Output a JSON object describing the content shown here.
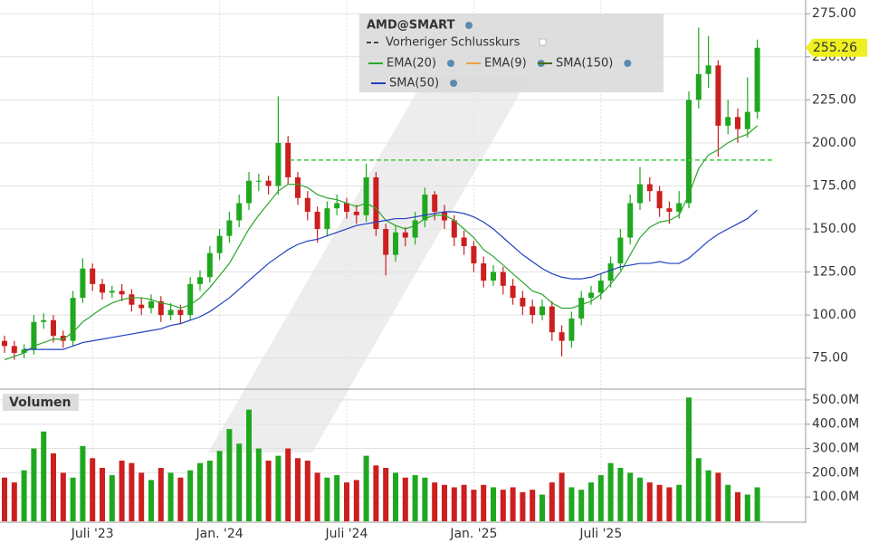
{
  "chart_data": {
    "type": "candlestick",
    "title": "AMD@SMART",
    "categories": [
      null,
      null,
      null,
      null,
      null,
      null,
      null,
      null,
      null,
      "Juli '23",
      null,
      null,
      null,
      null,
      null,
      null,
      null,
      null,
      null,
      null,
      null,
      null,
      "Jan. '24",
      null,
      null,
      null,
      null,
      null,
      null,
      null,
      null,
      null,
      null,
      null,
      null,
      "Juli '24",
      null,
      null,
      null,
      null,
      null,
      null,
      null,
      null,
      null,
      null,
      null,
      null,
      "Jan. '25",
      null,
      null,
      null,
      null,
      null,
      null,
      null,
      null,
      null,
      null,
      null,
      null,
      "Juli '25",
      null,
      null,
      null,
      null,
      null,
      null,
      null,
      null,
      null,
      null,
      null,
      null,
      null,
      null,
      null,
      null
    ],
    "open": [
      85,
      82,
      78,
      80,
      96,
      97,
      88,
      85,
      110,
      127,
      118,
      113,
      114,
      112,
      106,
      104,
      108,
      100,
      103,
      100,
      118,
      122,
      136,
      146,
      155,
      165,
      178,
      178,
      175,
      200,
      180,
      168,
      160,
      150,
      162,
      165,
      160,
      158,
      180,
      150,
      135,
      148,
      145,
      155,
      170,
      160,
      155,
      145,
      140,
      130,
      120,
      125,
      117,
      110,
      105,
      100,
      105,
      90,
      85,
      98,
      110,
      113,
      120,
      130,
      145,
      165,
      176,
      172,
      162,
      160,
      165,
      225,
      240,
      245,
      210,
      215,
      208,
      218
    ],
    "high": [
      88,
      85,
      83,
      100,
      101,
      100,
      91,
      114,
      133,
      130,
      121,
      117,
      118,
      115,
      110,
      112,
      111,
      107,
      106,
      122,
      126,
      140,
      150,
      160,
      170,
      183,
      182,
      181,
      227,
      204,
      183,
      172,
      163,
      166,
      170,
      168,
      164,
      188,
      183,
      153,
      152,
      151,
      160,
      174,
      172,
      164,
      158,
      149,
      143,
      134,
      129,
      128,
      121,
      114,
      109,
      109,
      108,
      94,
      102,
      114,
      117,
      124,
      134,
      150,
      170,
      186,
      180,
      175,
      166,
      172,
      230,
      267,
      262,
      248,
      225,
      220,
      238,
      260
    ],
    "low": [
      78,
      74,
      75,
      77,
      92,
      84,
      81,
      82,
      107,
      114,
      109,
      110,
      108,
      102,
      100,
      101,
      96,
      97,
      95,
      97,
      114,
      119,
      132,
      142,
      151,
      161,
      172,
      170,
      170,
      176,
      164,
      155,
      142,
      146,
      158,
      156,
      153,
      154,
      146,
      123,
      131,
      140,
      141,
      151,
      155,
      150,
      140,
      135,
      125,
      116,
      117,
      112,
      106,
      100,
      95,
      97,
      85,
      76,
      81,
      94,
      106,
      109,
      116,
      126,
      141,
      161,
      166,
      157,
      153,
      156,
      162,
      220,
      232,
      192,
      205,
      200,
      203,
      214
    ],
    "close": [
      82,
      78,
      80,
      96,
      97,
      88,
      85,
      110,
      127,
      118,
      113,
      114,
      112,
      106,
      104,
      108,
      100,
      103,
      100,
      118,
      122,
      136,
      146,
      155,
      165,
      178,
      178,
      175,
      200,
      180,
      168,
      160,
      150,
      162,
      165,
      160,
      158,
      180,
      150,
      135,
      148,
      145,
      155,
      170,
      160,
      155,
      145,
      140,
      130,
      120,
      125,
      117,
      110,
      105,
      100,
      105,
      90,
      85,
      98,
      110,
      113,
      120,
      130,
      145,
      165,
      176,
      172,
      162,
      160,
      165,
      225,
      240,
      245,
      210,
      215,
      208,
      218,
      255.26
    ],
    "up_color": "#1fa81f",
    "down_color": "#cc1f1f",
    "ylim": [
      58,
      283
    ],
    "yticks": [
      {
        "value": 75,
        "label": "75.00"
      },
      {
        "value": 100,
        "label": "100.00"
      },
      {
        "value": 125,
        "label": "125.00"
      },
      {
        "value": 150,
        "label": "150.00"
      },
      {
        "value": 175,
        "label": "175.00"
      },
      {
        "value": 200,
        "label": "200.00"
      },
      {
        "value": 225,
        "label": "225.00"
      },
      {
        "value": 250,
        "label": "250.00"
      },
      {
        "value": 275,
        "label": "275.00"
      }
    ],
    "grid": true,
    "reference_line": {
      "name": "Vorheriger Schlusskurs",
      "value": 190,
      "color": "#44c944"
    },
    "overlays": [
      {
        "name": "EMA(20)",
        "color": "#2aa62a",
        "values": [
          74,
          76,
          78,
          82,
          84,
          86,
          86,
          90,
          96,
          100,
          104,
          107,
          109,
          110,
          110,
          109,
          107,
          106,
          104,
          106,
          110,
          116,
          123,
          130,
          140,
          150,
          158,
          165,
          172,
          176,
          176,
          174,
          170,
          168,
          167,
          165,
          163,
          165,
          162,
          155,
          152,
          150,
          152,
          156,
          158,
          158,
          155,
          150,
          145,
          138,
          134,
          129,
          124,
          119,
          114,
          112,
          107,
          104,
          104,
          106,
          108,
          112,
          118,
          125,
          135,
          145,
          151,
          154,
          155,
          158,
          170,
          185,
          193,
          196,
          200,
          203,
          205,
          210
        ]
      },
      {
        "name": "EMA(9)",
        "color": "#f0a040"
      },
      {
        "name": "SMA(150)",
        "color": "#4a6a10"
      },
      {
        "name": "SMA(50)",
        "color": "#2040c0",
        "values": [
          null,
          null,
          80,
          80,
          80,
          80,
          80,
          82,
          84,
          85,
          86,
          87,
          88,
          89,
          90,
          91,
          92,
          94,
          95,
          97,
          99,
          102,
          106,
          110,
          115,
          120,
          125,
          130,
          134,
          138,
          141,
          143,
          144,
          146,
          148,
          150,
          152,
          153,
          154,
          155,
          156,
          156,
          157,
          158,
          159,
          160,
          160,
          159,
          157,
          154,
          150,
          145,
          140,
          135,
          131,
          127,
          124,
          122,
          121,
          121,
          122,
          124,
          126,
          128,
          129,
          130,
          130,
          131,
          130,
          130,
          133,
          138,
          143,
          147,
          150,
          153,
          156,
          161
        ]
      }
    ],
    "volume": {
      "title": "Volumen",
      "values": [
        180,
        160,
        210,
        300,
        370,
        280,
        200,
        180,
        310,
        260,
        220,
        190,
        250,
        240,
        200,
        170,
        220,
        200,
        180,
        210,
        240,
        250,
        290,
        380,
        320,
        460,
        300,
        250,
        270,
        300,
        260,
        250,
        200,
        180,
        190,
        160,
        170,
        270,
        230,
        220,
        200,
        180,
        190,
        180,
        160,
        150,
        140,
        150,
        130,
        150,
        140,
        130,
        140,
        120,
        130,
        110,
        160,
        200,
        140,
        130,
        160,
        190,
        240,
        220,
        200,
        180,
        160,
        150,
        140,
        150,
        510,
        260,
        210,
        200,
        150,
        120,
        110,
        140
      ],
      "ylim": [
        0,
        537
      ],
      "yticks": [
        {
          "value": 100,
          "label": "100.0M"
        },
        {
          "value": 200,
          "label": "200.0M"
        },
        {
          "value": 300,
          "label": "300.0M"
        },
        {
          "value": 400,
          "label": "400.0M"
        },
        {
          "value": 500,
          "label": "500.0M"
        }
      ]
    }
  }
}
